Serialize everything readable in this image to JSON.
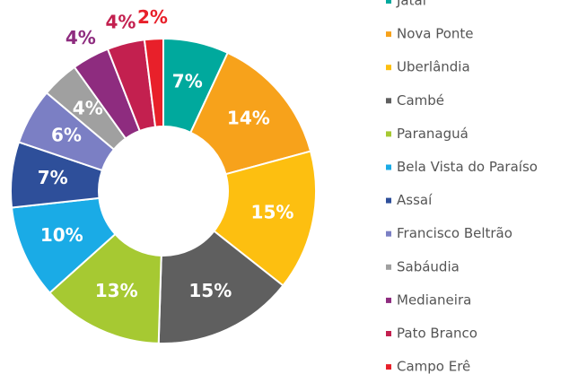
{
  "chart_data": {
    "type": "donut",
    "categories": [
      "Jataí",
      "Nova Ponte",
      "Uberlândia",
      "Cambé",
      "Paranaguá",
      "Bela Vista do Paraíso",
      "Assaí",
      "Francisco Beltrão",
      "Sabáudia",
      "Medianeira",
      "Pato Branco",
      "Campo Erê"
    ],
    "values": [
      7,
      14,
      15,
      15,
      13,
      10,
      7,
      6,
      4,
      4,
      4,
      2
    ],
    "value_labels": [
      "7%",
      "14%",
      "15%",
      "15%",
      "13%",
      "10%",
      "7%",
      "6%",
      "4%",
      "4%",
      "4%",
      "2%"
    ],
    "colors": [
      "#00a99d",
      "#f7a21b",
      "#fdbf10",
      "#5f5f5f",
      "#a6c932",
      "#1aabe6",
      "#2e4f9a",
      "#7b7fc4",
      "#a0a0a0",
      "#8e2c7f",
      "#c3204f",
      "#e8202a"
    ],
    "legend": "right"
  }
}
